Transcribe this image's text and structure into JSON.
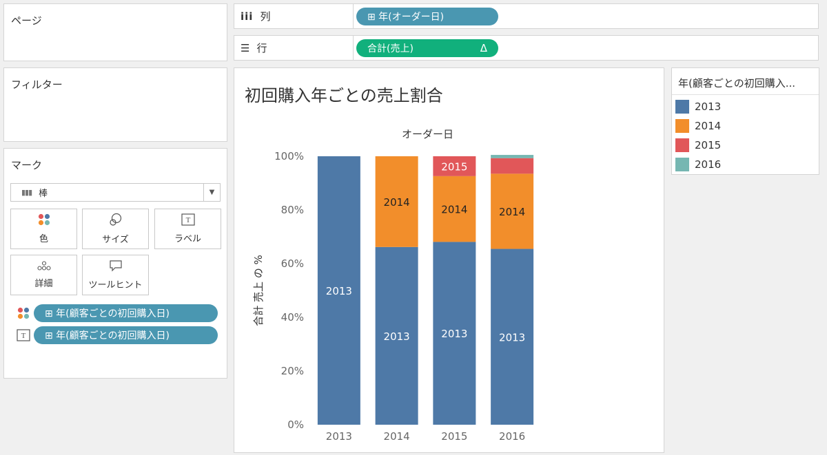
{
  "shelves": {
    "pages_title": "ページ",
    "columns_label": "列",
    "rows_label": "行",
    "columns_pill": "⊞ 年(オーダー日)",
    "rows_pill": "合計(売上)",
    "rows_pill_delta": "Δ"
  },
  "filters": {
    "title": "フィルター"
  },
  "marks": {
    "title": "マーク",
    "mark_type": "棒",
    "buttons": {
      "color": "色",
      "size": "サイズ",
      "label": "ラベル",
      "detail": "詳細",
      "tooltip": "ツールヒント"
    },
    "fields": [
      {
        "label": "⊞ 年(顧客ごとの初回購入日)"
      },
      {
        "label": "⊞ 年(顧客ごとの初回購入日)"
      }
    ]
  },
  "view": {
    "title": "初回購入年ごとの売上割合"
  },
  "legend": {
    "title": "年(顧客ごとの初回購入...",
    "items": [
      {
        "label": "2013",
        "color": "#4e79a7"
      },
      {
        "label": "2014",
        "color": "#f28e2b"
      },
      {
        "label": "2015",
        "color": "#e15759"
      },
      {
        "label": "2016",
        "color": "#76b7b2"
      }
    ]
  },
  "chart_data": {
    "type": "bar",
    "stacked": true,
    "title": "",
    "x_header": "オーダー日",
    "xlabel": "",
    "ylabel": "合計 売上 の %",
    "categories": [
      "2013",
      "2014",
      "2015",
      "2016"
    ],
    "ylim": [
      0,
      100
    ],
    "yticks": [
      "0%",
      "20%",
      "40%",
      "60%",
      "80%",
      "100%"
    ],
    "series": [
      {
        "name": "2013",
        "color": "#4e79a7",
        "values": [
          100,
          66.2,
          68.1,
          65.5
        ]
      },
      {
        "name": "2014",
        "color": "#f28e2b",
        "values": [
          0,
          33.8,
          24.5,
          28.0
        ]
      },
      {
        "name": "2015",
        "color": "#e15759",
        "values": [
          0,
          0,
          7.4,
          5.8
        ]
      },
      {
        "name": "2016",
        "color": "#76b7b2",
        "values": [
          0,
          0,
          0,
          1.2
        ]
      }
    ],
    "data_labels": [
      {
        "cat": "2013",
        "series": "2013",
        "text": "2013"
      },
      {
        "cat": "2014",
        "series": "2013",
        "text": "2013"
      },
      {
        "cat": "2015",
        "series": "2013",
        "text": "2013"
      },
      {
        "cat": "2016",
        "series": "2013",
        "text": "2013"
      },
      {
        "cat": "2014",
        "series": "2014",
        "text": "2014"
      },
      {
        "cat": "2015",
        "series": "2014",
        "text": "2014"
      },
      {
        "cat": "2016",
        "series": "2014",
        "text": "2014"
      },
      {
        "cat": "2015",
        "series": "2015",
        "text": "2015"
      }
    ],
    "grid": false
  }
}
